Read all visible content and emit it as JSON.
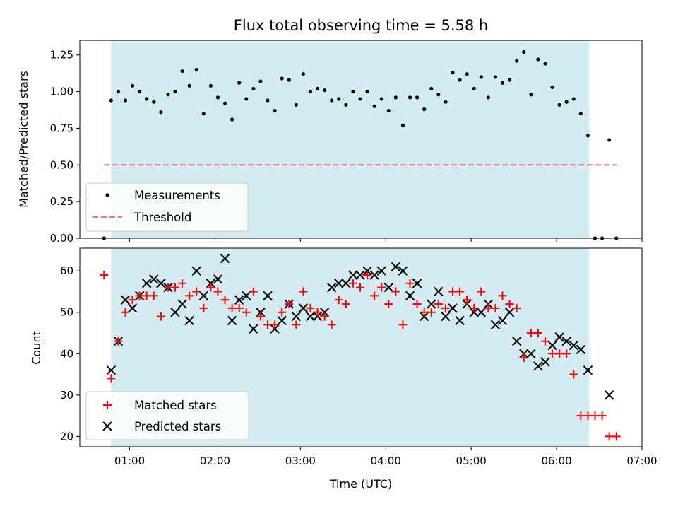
{
  "chart_data": [
    {
      "type": "scatter",
      "title": "Flux total observing time = 5.58 h",
      "ylabel": "Matched/Predicted stars",
      "xlabel": "",
      "ylim": [
        0,
        1.35
      ],
      "yticks": [
        0.0,
        0.25,
        0.5,
        0.75,
        1.0,
        1.25
      ],
      "ytick_labels": [
        "0.00",
        "0.25",
        "0.50",
        "0.75",
        "1.00",
        "1.25"
      ],
      "legend_position": "lower-left",
      "shaded_range": [
        "00:47",
        "06:23"
      ],
      "threshold": {
        "name": "Threshold",
        "value": 0.5,
        "x_start": "00:42",
        "x_end": "06:42",
        "color": "#f07272",
        "style": "dashed"
      },
      "series": [
        {
          "name": "Measurements",
          "marker": "dot",
          "color": "#000000",
          "x": [
            "00:42",
            "00:47",
            "00:52",
            "00:57",
            "01:02",
            "01:07",
            "01:12",
            "01:17",
            "01:22",
            "01:27",
            "01:32",
            "01:37",
            "01:42",
            "01:47",
            "01:52",
            "01:57",
            "02:02",
            "02:07",
            "02:12",
            "02:17",
            "02:22",
            "02:27",
            "02:32",
            "02:37",
            "02:42",
            "02:47",
            "02:52",
            "02:57",
            "03:02",
            "03:07",
            "03:12",
            "03:17",
            "03:22",
            "03:27",
            "03:32",
            "03:37",
            "03:42",
            "03:47",
            "03:52",
            "03:57",
            "04:02",
            "04:07",
            "04:12",
            "04:17",
            "04:22",
            "04:27",
            "04:32",
            "04:37",
            "04:42",
            "04:47",
            "04:52",
            "04:57",
            "05:02",
            "05:07",
            "05:12",
            "05:17",
            "05:22",
            "05:27",
            "05:32",
            "05:37",
            "05:42",
            "05:47",
            "05:52",
            "05:57",
            "06:02",
            "06:07",
            "06:12",
            "06:17",
            "06:22",
            "06:27",
            "06:32",
            "06:37",
            "06:42"
          ],
          "values": [
            0.0,
            0.94,
            1.0,
            0.94,
            1.04,
            1.0,
            0.95,
            0.93,
            0.86,
            0.98,
            1.0,
            1.14,
            1.04,
            1.15,
            0.85,
            1.04,
            0.96,
            0.92,
            0.81,
            1.06,
            0.95,
            1.02,
            1.07,
            0.94,
            0.87,
            1.09,
            1.08,
            0.91,
            1.12,
            1.0,
            1.02,
            1.01,
            0.94,
            0.95,
            0.91,
            1.0,
            0.95,
            1.0,
            0.9,
            0.95,
            0.87,
            0.96,
            0.77,
            0.96,
            0.96,
            0.88,
            1.02,
            0.98,
            0.93,
            1.13,
            1.08,
            1.12,
            1.02,
            1.1,
            0.96,
            1.1,
            1.06,
            1.08,
            1.21,
            1.27,
            0.98,
            1.22,
            1.19,
            1.03,
            0.91,
            0.93,
            0.95,
            0.85,
            0.7,
            0.0,
            0.0,
            0.67,
            0.0
          ]
        }
      ]
    },
    {
      "type": "scatter",
      "title": "",
      "xlabel": "Time (UTC)",
      "ylabel": "Count",
      "xlim": [
        "00:25",
        "07:00"
      ],
      "xticks": [
        "01:00",
        "02:00",
        "03:00",
        "04:00",
        "05:00",
        "06:00",
        "07:00"
      ],
      "ylim": [
        17.5,
        65.5
      ],
      "yticks": [
        20,
        30,
        40,
        50,
        60
      ],
      "ytick_labels": [
        "20",
        "30",
        "40",
        "50",
        "60"
      ],
      "legend_position": "lower-left",
      "shaded_range": [
        "00:47",
        "06:23"
      ],
      "series": [
        {
          "name": "Matched stars",
          "marker": "plus",
          "color": "#ff0000",
          "x": [
            "00:42",
            "00:47",
            "00:52",
            "00:57",
            "01:02",
            "01:07",
            "01:12",
            "01:17",
            "01:22",
            "01:27",
            "01:32",
            "01:37",
            "01:42",
            "01:47",
            "01:52",
            "01:57",
            "02:02",
            "02:07",
            "02:12",
            "02:17",
            "02:22",
            "02:27",
            "02:32",
            "02:37",
            "02:42",
            "02:47",
            "02:52",
            "02:57",
            "03:02",
            "03:07",
            "03:12",
            "03:17",
            "03:22",
            "03:27",
            "03:32",
            "03:37",
            "03:42",
            "03:47",
            "03:52",
            "03:57",
            "04:02",
            "04:07",
            "04:12",
            "04:17",
            "04:22",
            "04:27",
            "04:32",
            "04:37",
            "04:42",
            "04:47",
            "04:52",
            "04:57",
            "05:02",
            "05:07",
            "05:12",
            "05:17",
            "05:22",
            "05:27",
            "05:32",
            "05:37",
            "05:42",
            "05:47",
            "05:52",
            "05:57",
            "06:02",
            "06:07",
            "06:12",
            "06:17",
            "06:22",
            "06:27",
            "06:32",
            "06:37",
            "06:42"
          ],
          "values": [
            59,
            34,
            43,
            50,
            53,
            54,
            54,
            54,
            49,
            56,
            56,
            57,
            54,
            55,
            51,
            56,
            55,
            53,
            51,
            51,
            50,
            55,
            49,
            47,
            47,
            50,
            52,
            47,
            55,
            51,
            50,
            49,
            47,
            53,
            52,
            57,
            56,
            59,
            54,
            56,
            52,
            55,
            47,
            57,
            52,
            50,
            50,
            52,
            51,
            55,
            55,
            53,
            51,
            55,
            51,
            51,
            54,
            52,
            51,
            39,
            45,
            45,
            43,
            40,
            40,
            40,
            35,
            25,
            25,
            25,
            25,
            20,
            20
          ]
        },
        {
          "name": "Predicted stars",
          "marker": "x",
          "color": "#000000",
          "x": [
            "00:47",
            "00:52",
            "00:57",
            "01:02",
            "01:07",
            "01:12",
            "01:17",
            "01:22",
            "01:27",
            "01:32",
            "01:37",
            "01:42",
            "01:47",
            "01:52",
            "01:57",
            "02:02",
            "02:07",
            "02:12",
            "02:17",
            "02:22",
            "02:27",
            "02:32",
            "02:37",
            "02:42",
            "02:47",
            "02:52",
            "02:57",
            "03:02",
            "03:07",
            "03:12",
            "03:17",
            "03:22",
            "03:27",
            "03:32",
            "03:37",
            "03:42",
            "03:47",
            "03:52",
            "03:57",
            "04:02",
            "04:07",
            "04:12",
            "04:17",
            "04:22",
            "04:27",
            "04:32",
            "04:37",
            "04:42",
            "04:47",
            "04:52",
            "04:57",
            "05:02",
            "05:07",
            "05:12",
            "05:17",
            "05:22",
            "05:27",
            "05:32",
            "05:37",
            "05:42",
            "05:47",
            "05:52",
            "05:57",
            "06:02",
            "06:07",
            "06:12",
            "06:17",
            "06:22",
            "06:37"
          ],
          "values": [
            36,
            43,
            53,
            51,
            54,
            57,
            58,
            57,
            56,
            50,
            52,
            48,
            60,
            54,
            57,
            58,
            63,
            48,
            53,
            54,
            46,
            50,
            54,
            46,
            48,
            52,
            49,
            51,
            49,
            49,
            50,
            56,
            57,
            57,
            59,
            59,
            60,
            59,
            60,
            56,
            61,
            60,
            54,
            57,
            49,
            52,
            55,
            49,
            51,
            48,
            52,
            50,
            50,
            52,
            47,
            48,
            50,
            43,
            40,
            40,
            37,
            38,
            42,
            44,
            43,
            42,
            41,
            36,
            30
          ]
        }
      ]
    }
  ]
}
